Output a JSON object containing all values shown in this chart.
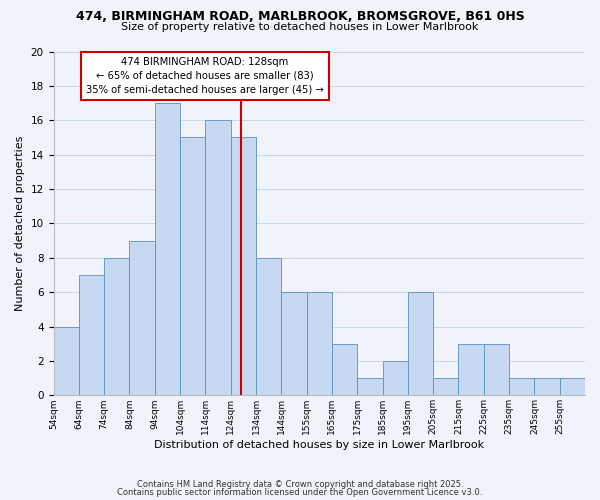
{
  "title1": "474, BIRMINGHAM ROAD, MARLBROOK, BROMSGROVE, B61 0HS",
  "title2": "Size of property relative to detached houses in Lower Marlbrook",
  "xlabel": "Distribution of detached houses by size in Lower Marlbrook",
  "ylabel": "Number of detached properties",
  "bin_labels": [
    "54sqm",
    "64sqm",
    "74sqm",
    "84sqm",
    "94sqm",
    "104sqm",
    "114sqm",
    "124sqm",
    "134sqm",
    "144sqm",
    "155sqm",
    "165sqm",
    "175sqm",
    "185sqm",
    "195sqm",
    "205sqm",
    "215sqm",
    "225sqm",
    "235sqm",
    "245sqm",
    "255sqm"
  ],
  "bar_heights": [
    4,
    7,
    8,
    9,
    17,
    15,
    16,
    15,
    8,
    6,
    6,
    3,
    1,
    2,
    6,
    1,
    3,
    3,
    1,
    1,
    1
  ],
  "bar_color": "#c6d9f0",
  "bar_edge_color": "#5a8fc2",
  "grid_color": "#c8d8e8",
  "annotation_box_edge": "#cc0000",
  "vline_color": "#cc0000",
  "annotation_text_line1": "474 BIRMINGHAM ROAD: 128sqm",
  "annotation_text_line2": "← 65% of detached houses are smaller (83)",
  "annotation_text_line3": "35% of semi-detached houses are larger (45) →",
  "footer1": "Contains HM Land Registry data © Crown copyright and database right 2025.",
  "footer2": "Contains public sector information licensed under the Open Government Licence v3.0.",
  "ylim": [
    0,
    20
  ],
  "yticks": [
    0,
    2,
    4,
    6,
    8,
    10,
    12,
    14,
    16,
    18,
    20
  ],
  "background_color": "#f0f4fa"
}
